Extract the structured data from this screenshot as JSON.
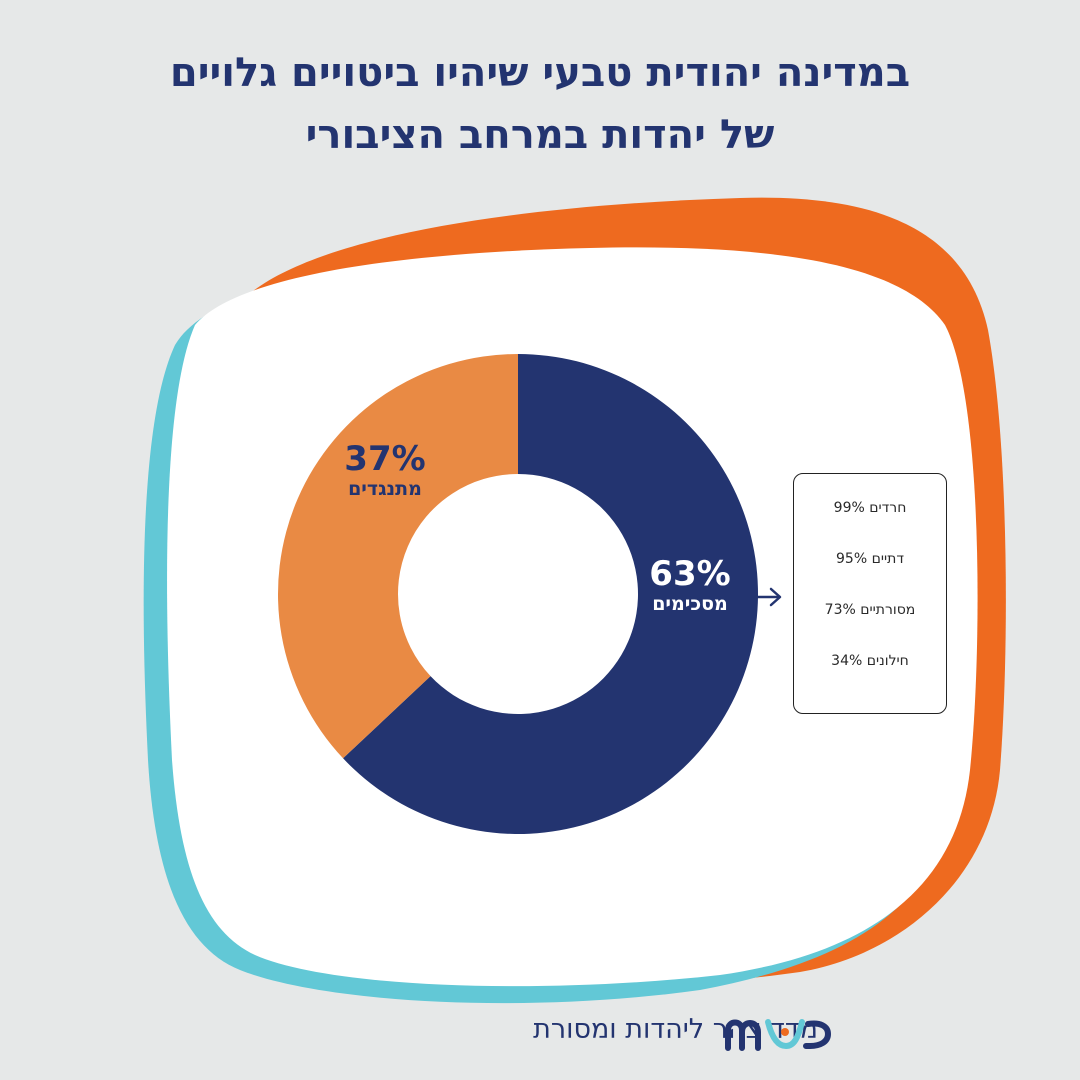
{
  "title": {
    "line1": "במדינה יהודית טבעי שיהיו ביטויים גלויים",
    "line2": "של יהדות במרחב הציבורי"
  },
  "colors": {
    "background": "#e6e8e8",
    "navy": "#233470",
    "orange_slice": "#e98a44",
    "orange_outline": "#ee6a1f",
    "teal_outline": "#62c8d6"
  },
  "chart_data": {
    "type": "pie",
    "donut": true,
    "categories": [
      "מסכימים",
      "מתנגדים"
    ],
    "values": [
      63,
      37
    ],
    "value_labels": [
      "63%",
      "37%"
    ],
    "colors": [
      "#233470",
      "#e98a44"
    ]
  },
  "breakdown": {
    "items": [
      "חרדים 99%",
      "דתיים 95%",
      "מסורתיים 73%",
      "חילונים 34%"
    ]
  },
  "footer": {
    "text": "מדד צהר ליהדות ומסורת",
    "logo_icon": "mashav-logo"
  }
}
